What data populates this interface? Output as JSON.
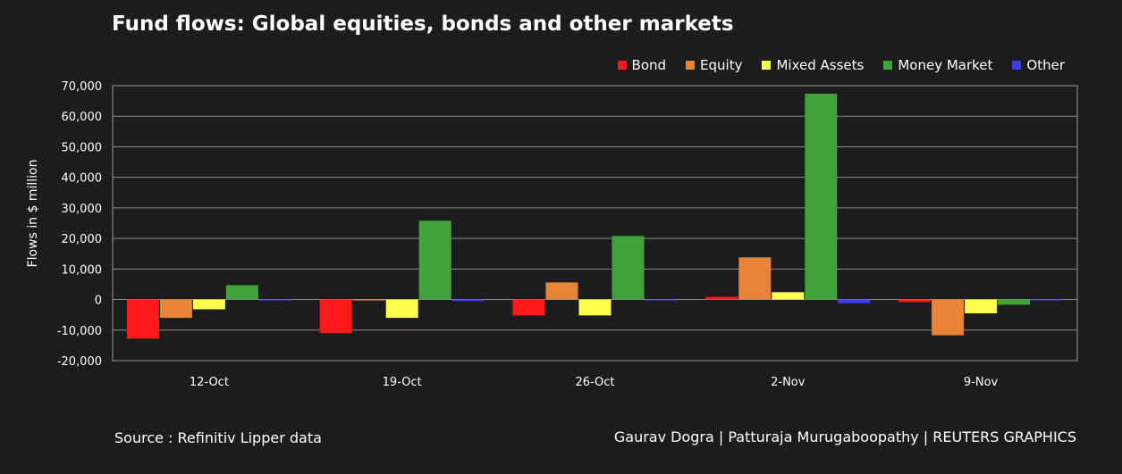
{
  "chart_data": {
    "type": "bar",
    "title": "Fund flows: Global equities, bonds and other markets",
    "ylabel": "Flows in $ million",
    "xlabel": "",
    "ylim": [
      -20000,
      70000
    ],
    "yticks": [
      70000,
      60000,
      50000,
      40000,
      30000,
      20000,
      10000,
      0,
      -10000,
      -20000
    ],
    "ytick_labels": [
      "70,000",
      "60,000",
      "50,000",
      "40,000",
      "30,000",
      "20,000",
      "10,000",
      "0",
      "-10,000",
      "-20,000"
    ],
    "grid": true,
    "legend_position": "top-right",
    "categories": [
      "12-Oct",
      "19-Oct",
      "26-Oct",
      "2-Nov",
      "9-Nov"
    ],
    "series": [
      {
        "name": "Bond",
        "color": "#ff1a1a",
        "values": [
          -12800,
          -11000,
          -5200,
          900,
          -800
        ]
      },
      {
        "name": "Equity",
        "color": "#e8843a",
        "values": [
          -6000,
          -300,
          5600,
          13800,
          -11700
        ]
      },
      {
        "name": "Mixed Assets",
        "color": "#ffff4d",
        "values": [
          -3200,
          -6000,
          -5200,
          2400,
          -4500
        ]
      },
      {
        "name": "Money Market",
        "color": "#3fa33a",
        "values": [
          4700,
          25800,
          20800,
          67400,
          -1700
        ]
      },
      {
        "name": "Other",
        "color": "#3d3df0",
        "values": [
          -300,
          -500,
          -200,
          -1200,
          -200
        ]
      }
    ]
  },
  "footer": {
    "source": "Source : Refinitiv Lipper data",
    "credit": "Gaurav Dogra | Patturaja Murugaboopathy | REUTERS GRAPHICS"
  }
}
